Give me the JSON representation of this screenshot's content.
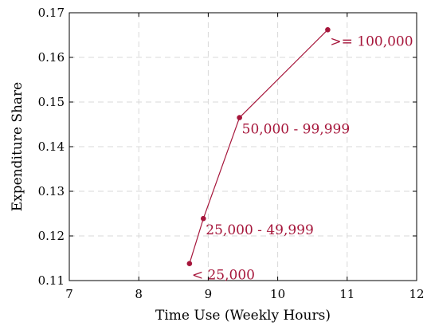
{
  "chart_data": {
    "type": "line",
    "xlabel": "Time Use (Weekly Hours)",
    "ylabel": "Expenditure Share",
    "xlim": [
      7,
      12
    ],
    "ylim": [
      0.11,
      0.17
    ],
    "xticks": [
      7,
      8,
      9,
      10,
      11,
      12
    ],
    "yticks": [
      0.11,
      0.12,
      0.13,
      0.14,
      0.15,
      0.16,
      0.17
    ],
    "xtick_labels": [
      "7",
      "8",
      "9",
      "10",
      "11",
      "12"
    ],
    "ytick_labels": [
      "0.11",
      "0.12",
      "0.13",
      "0.14",
      "0.15",
      "0.16",
      "0.17"
    ],
    "grid": true,
    "series": [
      {
        "color": "#a6163b",
        "points": [
          {
            "x": 8.73,
            "y": 0.1138,
            "label": "< 25,000"
          },
          {
            "x": 8.93,
            "y": 0.1239,
            "label": "25,000 - 49,999"
          },
          {
            "x": 9.45,
            "y": 0.1465,
            "label": "50,000 - 99,999"
          },
          {
            "x": 10.72,
            "y": 0.1662,
            "label": ">= 100,000"
          }
        ]
      }
    ]
  }
}
